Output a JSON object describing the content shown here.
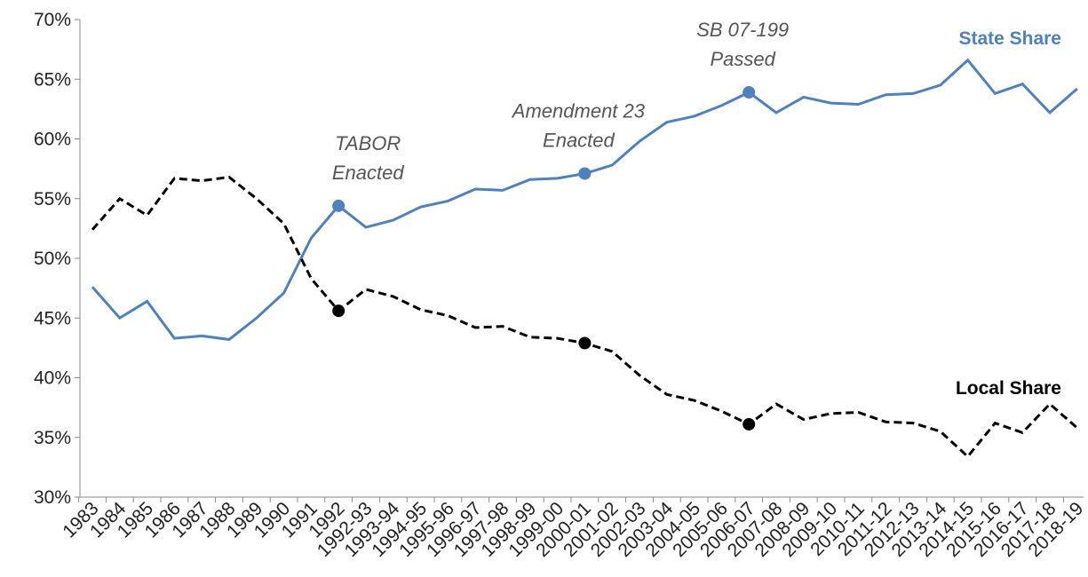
{
  "chart_data": {
    "type": "line",
    "categories": [
      "1983",
      "1984",
      "1985",
      "1986",
      "1987",
      "1988",
      "1989",
      "1990",
      "1991",
      "1992",
      "1992-93",
      "1993-94",
      "1994-95",
      "1995-96",
      "1996-97",
      "1997-98",
      "1998-99",
      "1999-00",
      "2000-01",
      "2001-02",
      "2002-03",
      "2003-04",
      "2004-05",
      "2005-06",
      "2006-07",
      "2007-08",
      "2008-09",
      "2009-10",
      "2010-11",
      "2011-12",
      "2012-13",
      "2013-14",
      "2014-15",
      "2015-16",
      "2016-17",
      "2017-18",
      "2018-19"
    ],
    "series": [
      {
        "name": "State Share",
        "color": "#4f81bd",
        "dashed": false,
        "values": [
          47.6,
          45.0,
          46.4,
          43.3,
          43.5,
          43.2,
          45.0,
          47.1,
          51.7,
          54.4,
          52.6,
          53.2,
          54.3,
          54.8,
          55.8,
          55.7,
          56.6,
          56.7,
          57.1,
          57.8,
          59.8,
          61.4,
          61.9,
          62.8,
          63.9,
          62.2,
          63.5,
          63.0,
          62.9,
          63.7,
          63.8,
          64.5,
          66.6,
          63.8,
          64.6,
          62.2,
          64.2
        ]
      },
      {
        "name": "Local Share",
        "color": "#000000",
        "dashed": true,
        "values": [
          52.4,
          55.0,
          53.6,
          56.7,
          56.5,
          56.8,
          55.0,
          52.9,
          48.3,
          45.6,
          47.4,
          46.8,
          45.7,
          45.2,
          44.2,
          44.3,
          43.4,
          43.3,
          42.9,
          42.2,
          40.2,
          38.6,
          38.1,
          37.2,
          36.1,
          37.8,
          36.5,
          37.0,
          37.1,
          36.3,
          36.2,
          35.5,
          33.4,
          36.2,
          35.4,
          37.8,
          35.8
        ]
      }
    ],
    "annotations": [
      {
        "category": "1992",
        "lines": [
          "TABOR",
          "Enacted"
        ]
      },
      {
        "category": "2000-01",
        "lines": [
          "Amendment 23",
          "Enacted"
        ]
      },
      {
        "category": "2006-07",
        "lines": [
          "SB 07-199",
          "Passed"
        ]
      }
    ],
    "ylim": [
      30,
      70
    ],
    "yticks": [
      {
        "value": 30,
        "label": "30%"
      },
      {
        "value": 35,
        "label": "35%"
      },
      {
        "value": 40,
        "label": "40%"
      },
      {
        "value": 45,
        "label": "45%"
      },
      {
        "value": 50,
        "label": "50%"
      },
      {
        "value": 55,
        "label": "55%"
      },
      {
        "value": 60,
        "label": "60%"
      },
      {
        "value": 65,
        "label": "65%"
      },
      {
        "value": 70,
        "label": "70%"
      }
    ],
    "grid": false
  }
}
